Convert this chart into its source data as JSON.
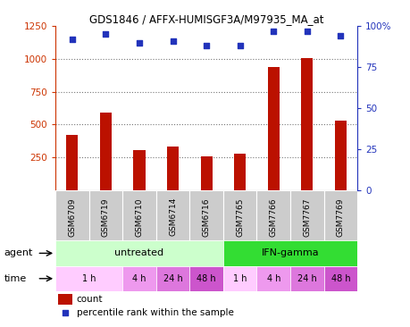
{
  "title": "GDS1846 / AFFX-HUMISGF3A/M97935_MA_at",
  "samples": [
    "GSM6709",
    "GSM6719",
    "GSM6710",
    "GSM6714",
    "GSM6716",
    "GSM7765",
    "GSM7766",
    "GSM7767",
    "GSM7769"
  ],
  "counts": [
    420,
    590,
    305,
    330,
    255,
    275,
    935,
    1005,
    530
  ],
  "percentile_ranks": [
    92,
    95,
    90,
    91,
    88,
    88,
    97,
    97,
    94
  ],
  "ylim_left": [
    0,
    1250
  ],
  "yticks_left": [
    250,
    500,
    750,
    1000,
    1250
  ],
  "ylim_right": [
    0,
    100
  ],
  "yticks_right": [
    0,
    25,
    50,
    75,
    100
  ],
  "yticklabels_right": [
    "0",
    "25",
    "50",
    "75",
    "100%"
  ],
  "bar_color": "#bb1100",
  "dot_color": "#2233bb",
  "grid_color": "#777777",
  "agent_groups": [
    {
      "label": "untreated",
      "start": 0,
      "end": 5,
      "color": "#ccffcc"
    },
    {
      "label": "IFN-gamma",
      "start": 5,
      "end": 9,
      "color": "#33dd33"
    }
  ],
  "time_groups": [
    {
      "label": "1 h",
      "start": 0,
      "end": 2,
      "color": "#ffccff"
    },
    {
      "label": "4 h",
      "start": 2,
      "end": 3,
      "color": "#ee99ee"
    },
    {
      "label": "24 h",
      "start": 3,
      "end": 4,
      "color": "#dd77dd"
    },
    {
      "label": "48 h",
      "start": 4,
      "end": 5,
      "color": "#cc55cc"
    },
    {
      "label": "1 h",
      "start": 5,
      "end": 6,
      "color": "#ffccff"
    },
    {
      "label": "4 h",
      "start": 6,
      "end": 7,
      "color": "#ee99ee"
    },
    {
      "label": "24 h",
      "start": 7,
      "end": 8,
      "color": "#dd77dd"
    },
    {
      "label": "48 h",
      "start": 8,
      "end": 9,
      "color": "#cc55cc"
    }
  ],
  "xticklabel_bg": "#cccccc",
  "legend_count_label": "count",
  "legend_pct_label": "percentile rank within the sample",
  "agent_label": "agent",
  "time_label": "time",
  "left_axis_color": "#cc3300",
  "right_axis_color": "#2233bb",
  "background_color": "#ffffff"
}
